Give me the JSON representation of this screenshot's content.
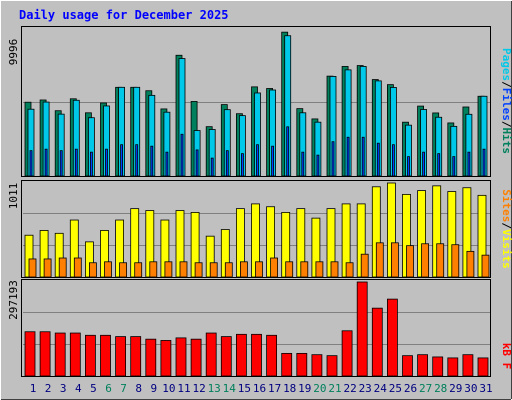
{
  "title": "Daily usage for December 2025",
  "colors": {
    "background": "#c0c0c0",
    "plot": "#c0c0c0",
    "hits": "#00805c",
    "files": "#0040ff",
    "pages": "#00c8e8",
    "visits": "#ffff00",
    "sites": "#ff8000",
    "kbytes": "#ff0000",
    "title": "#0000ff",
    "day_normal": "#000080",
    "day_weekend": "#00805c"
  },
  "panels": {
    "top": {
      "max_label": "9996",
      "legend": [
        "Pages",
        "/",
        "Files",
        "/",
        "Hits"
      ]
    },
    "middle": {
      "max_label": "1011",
      "legend": [
        "Sites",
        "/",
        "Visits"
      ]
    },
    "bottom": {
      "max_label": "297193",
      "legend": [
        "kB",
        "F"
      ]
    }
  },
  "chart_data": [
    {
      "type": "bar",
      "panel": "top",
      "ylim": [
        0,
        9996
      ],
      "categories": [
        "1",
        "2",
        "3",
        "4",
        "5",
        "6",
        "7",
        "8",
        "9",
        "10",
        "11",
        "12",
        "13",
        "14",
        "15",
        "16",
        "17",
        "18",
        "19",
        "20",
        "21",
        "22",
        "23",
        "24",
        "25",
        "26",
        "27",
        "28",
        "29",
        "30",
        "31"
      ],
      "series": [
        {
          "name": "Hits",
          "values": [
            4950,
            5100,
            4380,
            5180,
            4240,
            4900,
            5950,
            5950,
            5720,
            4500,
            8100,
            5000,
            3310,
            4790,
            4180,
            5980,
            5870,
            9650,
            4520,
            3830,
            6700,
            7350,
            7410,
            6470,
            6130,
            3610,
            4690,
            4230,
            3560,
            4630,
            5350
          ]
        },
        {
          "name": "Files",
          "values": [
            1700,
            1800,
            1700,
            1800,
            1600,
            1800,
            2100,
            2100,
            2000,
            1600,
            2800,
            1750,
            1200,
            1700,
            1500,
            2100,
            2000,
            3300,
            1600,
            1400,
            2300,
            2600,
            2600,
            2200,
            2100,
            1300,
            1600,
            1500,
            1300,
            1600,
            1800
          ]
        },
        {
          "name": "Pages",
          "values": [
            4480,
            4960,
            4150,
            5080,
            3910,
            4700,
            5950,
            5950,
            5410,
            4280,
            7880,
            3050,
            3120,
            4450,
            4050,
            5570,
            5770,
            9410,
            4240,
            3610,
            6680,
            7120,
            7350,
            6380,
            5940,
            3410,
            4460,
            3940,
            3330,
            4140,
            5350
          ]
        }
      ]
    },
    {
      "type": "bar",
      "panel": "middle",
      "ylim": [
        0,
        1011
      ],
      "categories": [
        "1",
        "2",
        "3",
        "4",
        "5",
        "6",
        "7",
        "8",
        "9",
        "10",
        "11",
        "12",
        "13",
        "14",
        "15",
        "16",
        "17",
        "18",
        "19",
        "20",
        "21",
        "22",
        "23",
        "24",
        "25",
        "26",
        "27",
        "28",
        "29",
        "30",
        "31"
      ],
      "series": [
        {
          "name": "Visits",
          "values": [
            440,
            490,
            460,
            600,
            370,
            490,
            600,
            720,
            700,
            600,
            700,
            680,
            430,
            500,
            720,
            770,
            740,
            680,
            720,
            620,
            720,
            770,
            770,
            950,
            990,
            870,
            910,
            960,
            900,
            940,
            860
          ]
        },
        {
          "name": "Sites",
          "values": [
            190,
            190,
            200,
            200,
            150,
            160,
            150,
            150,
            160,
            160,
            160,
            150,
            150,
            150,
            160,
            160,
            200,
            160,
            160,
            160,
            160,
            150,
            240,
            360,
            360,
            330,
            350,
            350,
            340,
            270,
            230
          ]
        }
      ]
    },
    {
      "type": "bar",
      "panel": "bottom",
      "ylim": [
        0,
        297193
      ],
      "categories": [
        "1",
        "2",
        "3",
        "4",
        "5",
        "6",
        "7",
        "8",
        "9",
        "10",
        "11",
        "12",
        "13",
        "14",
        "15",
        "16",
        "17",
        "18",
        "19",
        "20",
        "21",
        "22",
        "23",
        "24",
        "25",
        "26",
        "27",
        "28",
        "29",
        "30",
        "31"
      ],
      "series": [
        {
          "name": "kB F",
          "values": [
            137000,
            137000,
            133000,
            133000,
            126000,
            126000,
            122000,
            122000,
            114000,
            110000,
            118000,
            114000,
            133000,
            122000,
            129000,
            129000,
            126000,
            70000,
            70000,
            66000,
            63000,
            140000,
            298000,
            210000,
            238000,
            63000,
            66000,
            59000,
            56000,
            66000,
            56000
          ]
        }
      ]
    }
  ],
  "weekend_days": [
    "6",
    "7",
    "13",
    "14",
    "20",
    "21",
    "27",
    "28"
  ]
}
